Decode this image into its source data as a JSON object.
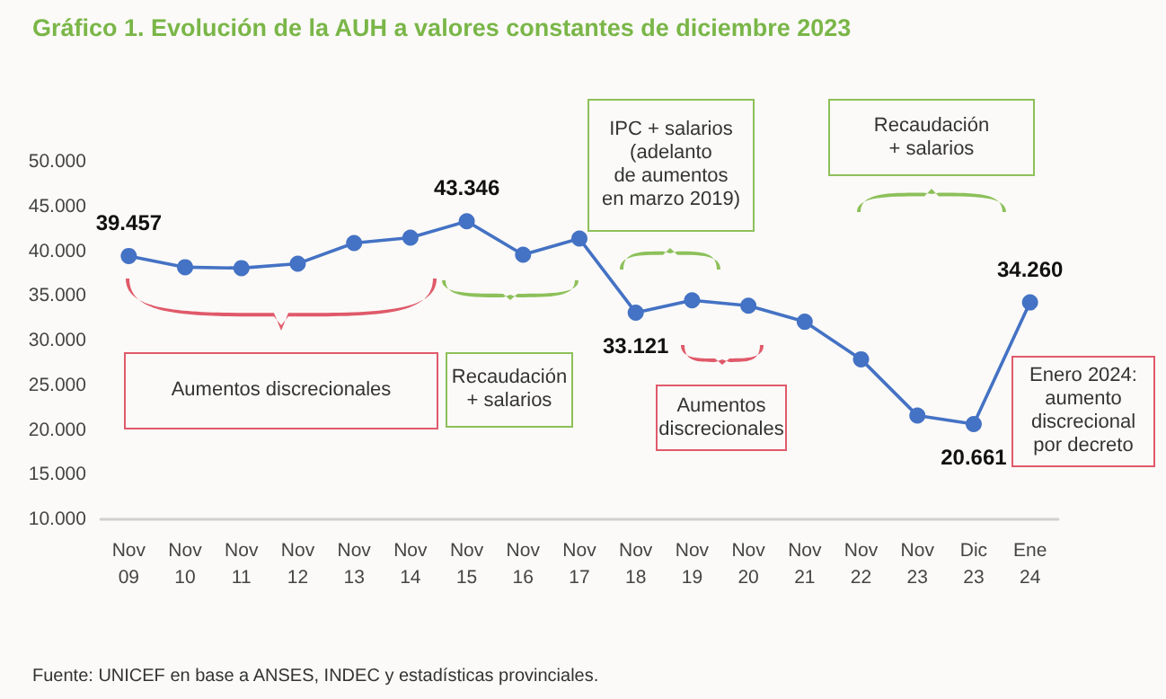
{
  "chart_data": {
    "type": "line",
    "title": "Gráfico 1. Evolución de la AUH a valores constantes de diciembre 2023",
    "categories": [
      "Nov 09",
      "Nov 10",
      "Nov 11",
      "Nov 12",
      "Nov 13",
      "Nov 14",
      "Nov 15",
      "Nov 16",
      "Nov 17",
      "Nov 18",
      "Nov 19",
      "Nov 20",
      "Nov 21",
      "Nov 22",
      "Nov 23",
      "Dic 23",
      "Ene 24"
    ],
    "series": [
      {
        "color": "#4472c4",
        "values": [
          39457,
          38200,
          38100,
          38600,
          40900,
          41500,
          43346,
          39600,
          41400,
          33121,
          34500,
          33900,
          32100,
          27900,
          21600,
          20661,
          34260
        ],
        "value_labels": [
          "39.457",
          null,
          null,
          null,
          null,
          null,
          "43.346",
          null,
          null,
          "33.121",
          null,
          null,
          null,
          null,
          null,
          "20.661",
          "34.260"
        ]
      }
    ],
    "ylim": [
      10000,
      50000
    ],
    "yticks": [
      {
        "value": 10000,
        "label": "10.000"
      },
      {
        "value": 15000,
        "label": "15.000"
      },
      {
        "value": 20000,
        "label": "20.000"
      },
      {
        "value": 25000,
        "label": "25.000"
      },
      {
        "value": 30000,
        "label": "30.000"
      },
      {
        "value": 35000,
        "label": "35.000"
      },
      {
        "value": 40000,
        "label": "40.000"
      },
      {
        "value": 45000,
        "label": "45.000"
      },
      {
        "value": 50000,
        "label": "50.000"
      }
    ],
    "marker": "circle",
    "grid": false,
    "annotations": [
      "Aumentos discrecionales",
      "Recaudación\n+ salarios",
      "IPC + salarios\n(adelanto\nde aumentos\nen marzo 2019)",
      "Recaudación\n+ salarios",
      "Aumentos\ndiscrecionales",
      "Enero 2024:\naumento\ndiscrecional\npor decreto",
      "Fuente: UNICEF en base a ANSES, INDEC y estadísticas provinciales."
    ]
  }
}
